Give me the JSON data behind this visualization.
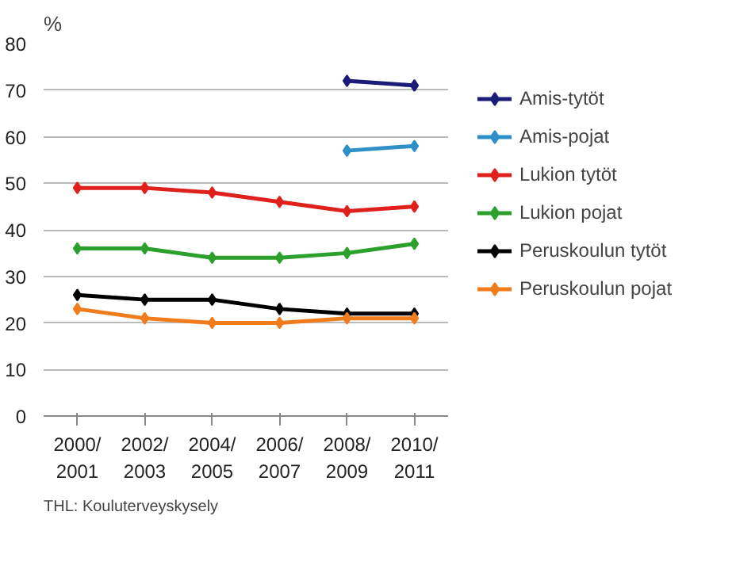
{
  "chart_data": {
    "type": "line",
    "ylabel": "%",
    "categories": [
      "2000/\n2001",
      "2002/\n2003",
      "2004/\n2005",
      "2006/\n2007",
      "2008/\n2009",
      "2010/\n2011"
    ],
    "series": [
      {
        "name": "Amis-tytöt",
        "color": "#1c1c78",
        "values": [
          null,
          null,
          null,
          null,
          72,
          71
        ]
      },
      {
        "name": "Amis-pojat",
        "color": "#2f8fc8",
        "values": [
          null,
          null,
          null,
          null,
          57,
          58
        ]
      },
      {
        "name": "Lukion tytöt",
        "color": "#e0201c",
        "values": [
          49,
          49,
          48,
          46,
          44,
          45
        ]
      },
      {
        "name": "Lukion pojat",
        "color": "#2ca02c",
        "values": [
          36,
          36,
          34,
          34,
          35,
          37
        ]
      },
      {
        "name": "Peruskoulun tytöt",
        "color": "#000000",
        "values": [
          26,
          25,
          25,
          23,
          22,
          22
        ]
      },
      {
        "name": "Peruskoulun pojat",
        "color": "#f07c1c",
        "values": [
          23,
          21,
          20,
          20,
          21,
          21
        ]
      }
    ],
    "ylim": [
      0,
      80
    ],
    "yticks": [
      0,
      10,
      20,
      30,
      40,
      50,
      60,
      70,
      80
    ],
    "grid": "y",
    "legend": "right",
    "marker": "diamond",
    "line_style": "solid",
    "annotations": [
      "THL: Kouluterveyskysely"
    ]
  }
}
